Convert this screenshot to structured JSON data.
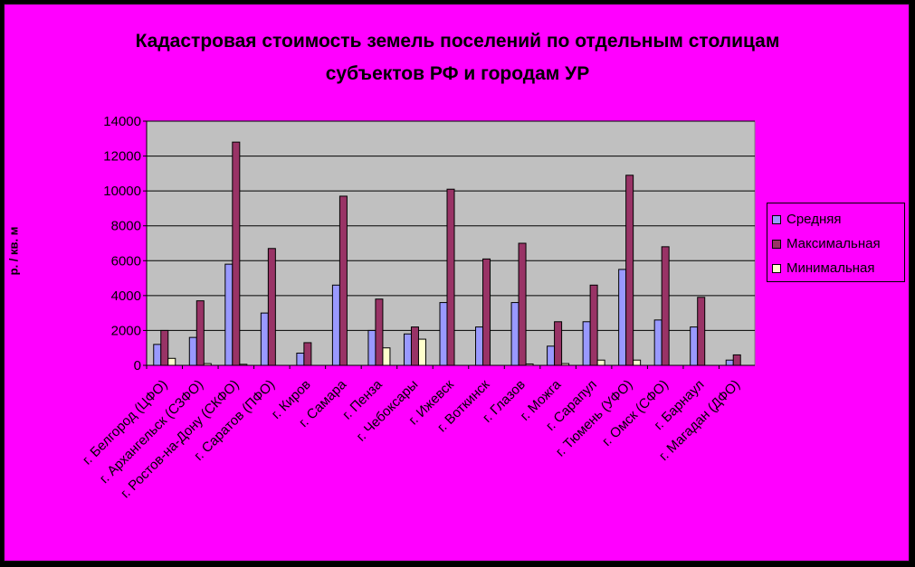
{
  "chart_data": {
    "type": "bar",
    "title_line1": "Кадастровая стоимость земель поселений по отдельным столицам",
    "title_line2": "субъектов РФ и городам УР",
    "ylabel": "р. / кв. м",
    "ylim": [
      0,
      14000
    ],
    "yticks": [
      "0",
      "2000",
      "4000",
      "6000",
      "8000",
      "10000",
      "12000",
      "14000"
    ],
    "grid": true,
    "legend_position": "right",
    "categories": [
      "г. Белгород (ЦФО)",
      "г. Архангельск (СЗФО)",
      "г. Ростов-на-Дону (СКФО)",
      "г. Саратов (ПФО)",
      "г. Киров",
      "г. Самара",
      "г. Пенза",
      "г. Чебоксары",
      "г. Ижевск",
      "г. Воткинск",
      "г. Глазов",
      "г. Можга",
      "г. Сарапул",
      "г. Тюмень (УФО)",
      "г. Омск (СФО)",
      "г. Барнаул",
      "г. Магадан (ДФО)"
    ],
    "series": [
      {
        "name": "Средняя",
        "color": "#9999ff",
        "values": [
          1200,
          1600,
          5800,
          3000,
          700,
          4600,
          2000,
          1800,
          3600,
          2200,
          3600,
          1100,
          2500,
          5500,
          2600,
          2200,
          300
        ]
      },
      {
        "name": "Максимальная",
        "color": "#993366",
        "values": [
          2000,
          3700,
          12800,
          6700,
          1300,
          9700,
          3800,
          2200,
          10100,
          6100,
          7000,
          2500,
          4600,
          10900,
          6800,
          3900,
          600
        ]
      },
      {
        "name": "Минимальная",
        "color": "#ffffcc",
        "values": [
          400,
          100,
          60,
          0,
          0,
          0,
          1000,
          1500,
          0,
          0,
          80,
          100,
          300,
          300,
          0,
          0,
          0
        ]
      }
    ]
  },
  "colors": {
    "background": "#ff00ff",
    "plot_area": "#c0c0c0",
    "outer": "#000000"
  }
}
